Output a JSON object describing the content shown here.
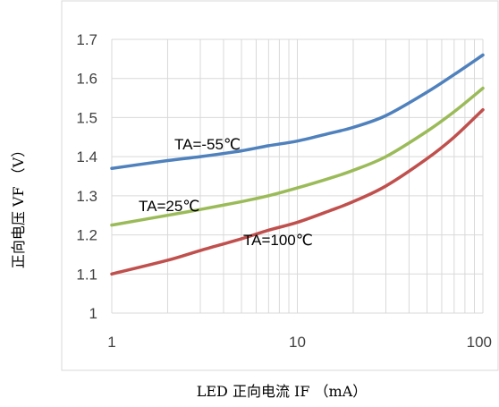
{
  "chart_data": {
    "type": "line",
    "xlabel": "LED 正向电流 IF （mA）",
    "ylabel": "正向电压 VF （V）",
    "x_scale": "log",
    "xlim": [
      1,
      100
    ],
    "ylim": [
      1.0,
      1.7
    ],
    "x_ticks": [
      1,
      10,
      100
    ],
    "x_tick_labels": [
      "1",
      "10",
      "100"
    ],
    "y_ticks": [
      1.0,
      1.1,
      1.2,
      1.3,
      1.4,
      1.5,
      1.6,
      1.7
    ],
    "y_tick_labels": [
      "1",
      "1.1",
      "1.2",
      "1.3",
      "1.4",
      "1.5",
      "1.6",
      "1.7"
    ],
    "grid": true,
    "legend": "none",
    "series": [
      {
        "name": "TA=-55℃",
        "color": "#4f81bd",
        "x": [
          1,
          2,
          3,
          5,
          7,
          10,
          15,
          20,
          30,
          50,
          70,
          100
        ],
        "y": [
          1.37,
          1.39,
          1.4,
          1.415,
          1.428,
          1.44,
          1.46,
          1.475,
          1.505,
          1.565,
          1.61,
          1.66
        ]
      },
      {
        "name": "TA=25℃",
        "color": "#9bbb59",
        "x": [
          1,
          2,
          3,
          5,
          7,
          10,
          15,
          20,
          30,
          50,
          70,
          100
        ],
        "y": [
          1.225,
          1.25,
          1.265,
          1.285,
          1.3,
          1.32,
          1.345,
          1.365,
          1.4,
          1.465,
          1.515,
          1.575
        ]
      },
      {
        "name": "TA=100℃",
        "color": "#c0504d",
        "x": [
          1,
          2,
          3,
          5,
          7,
          10,
          15,
          20,
          30,
          50,
          70,
          100
        ],
        "y": [
          1.1,
          1.135,
          1.16,
          1.19,
          1.212,
          1.232,
          1.262,
          1.285,
          1.325,
          1.395,
          1.45,
          1.52
        ]
      }
    ],
    "annotations": [
      "TA=-55℃",
      "TA=25℃",
      "TA=100℃"
    ]
  }
}
